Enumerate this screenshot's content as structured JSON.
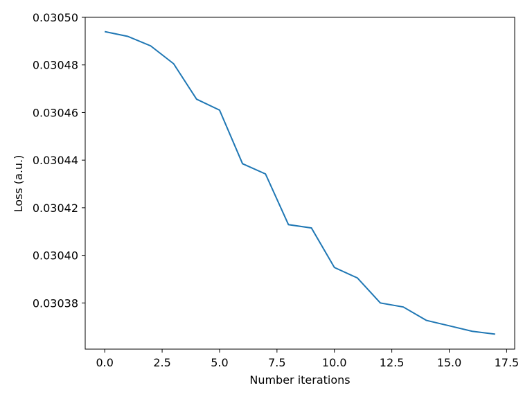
{
  "chart_data": {
    "type": "line",
    "xlabel": "Number iterations",
    "ylabel": "Loss (a.u.)",
    "x": [
      0,
      1,
      2,
      3,
      4,
      5,
      6,
      7,
      8,
      9,
      10,
      11,
      12,
      13,
      14,
      15,
      16,
      17
    ],
    "series": [
      {
        "color": "#1f77b4",
        "values": [
          0.030494,
          0.030492,
          0.030488,
          0.0304805,
          0.0304656,
          0.030461,
          0.0304385,
          0.0304342,
          0.0304129,
          0.0304115,
          0.0303949,
          0.0303905,
          0.03038,
          0.0303783,
          0.0303727,
          0.0303704,
          0.0303681,
          0.0303669
        ]
      }
    ],
    "xlim": [
      -0.85,
      17.85
    ],
    "ylim": [
      0.0303606,
      0.0305
    ],
    "xticks": [
      {
        "value": 0,
        "label": "0.0"
      },
      2.5,
      {
        "value": 5,
        "label": "5.0"
      },
      7.5,
      {
        "value": 10,
        "label": "10.0"
      },
      12.5,
      {
        "value": 15,
        "label": "15.0"
      },
      17.5
    ],
    "yticks": [
      0.03038,
      {
        "value": 0.0304,
        "label": "0.03040"
      },
      0.03042,
      0.03044,
      0.03046,
      0.03048,
      {
        "value": 0.0305,
        "label": "0.03050"
      }
    ],
    "grid": false
  }
}
